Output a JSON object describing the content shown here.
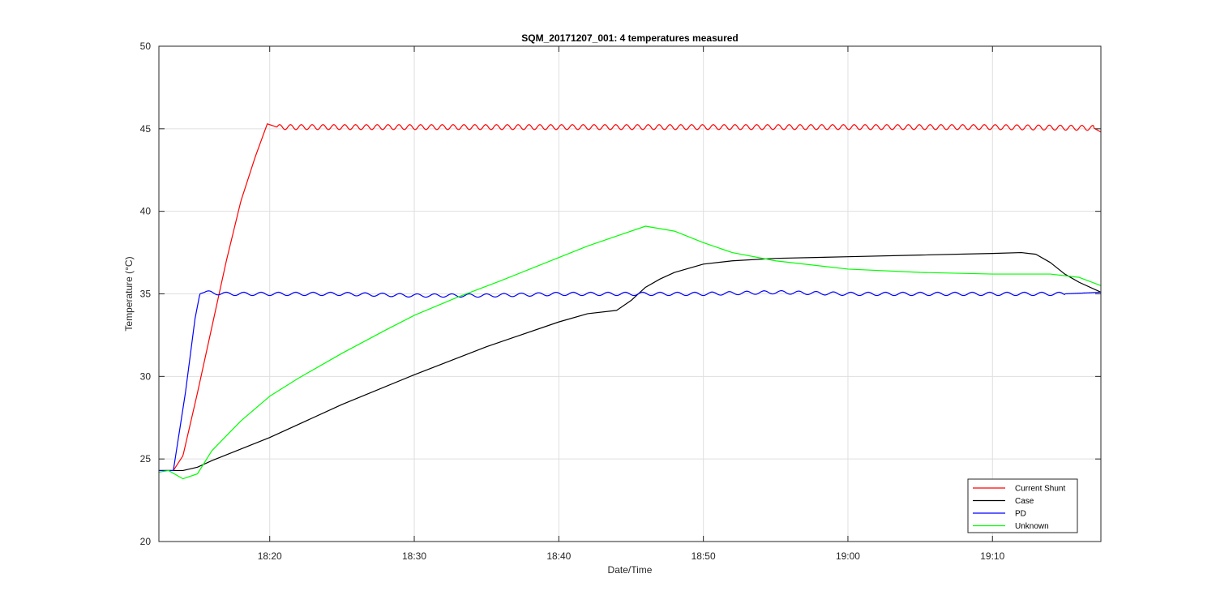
{
  "chart_data": {
    "type": "line",
    "title": "SQM_20171207_001: 4 temperatures measured",
    "xlabel": "Date/Time",
    "ylabel": "Temperature (°C)",
    "x_unit": "clock time (HH:MM)",
    "xlim": [
      "18:12:20",
      "19:17:30"
    ],
    "ylim": [
      20,
      50
    ],
    "xticks": [
      "18:20",
      "18:30",
      "18:40",
      "18:50",
      "19:00",
      "19:10"
    ],
    "yticks": [
      20,
      25,
      30,
      35,
      40,
      45,
      50
    ],
    "grid": true,
    "legend_position": "bottom-right",
    "series": [
      {
        "name": "Current Shunt",
        "color": "#ff0000",
        "oscillation": {
          "amplitude": 0.15,
          "period_min": 0.75,
          "from": "18:20:30"
        },
        "points": [
          [
            "18:12:20",
            24.3
          ],
          [
            "18:13:20",
            24.3
          ],
          [
            "18:14:00",
            25.2
          ],
          [
            "18:15:00",
            29.0
          ],
          [
            "18:16:00",
            33.0
          ],
          [
            "18:17:00",
            37.0
          ],
          [
            "18:18:00",
            40.6
          ],
          [
            "18:19:00",
            43.3
          ],
          [
            "18:19:50",
            45.3
          ],
          [
            "18:20:30",
            45.1
          ],
          [
            "18:30:00",
            45.1
          ],
          [
            "18:40:00",
            45.1
          ],
          [
            "18:50:00",
            45.1
          ],
          [
            "19:00:00",
            45.1
          ],
          [
            "19:10:00",
            45.1
          ],
          [
            "19:17:00",
            45.05
          ],
          [
            "19:17:30",
            44.8
          ]
        ]
      },
      {
        "name": "Case",
        "color": "#000000",
        "points": [
          [
            "18:12:20",
            24.3
          ],
          [
            "18:14:00",
            24.3
          ],
          [
            "18:15:00",
            24.5
          ],
          [
            "18:16:00",
            24.9
          ],
          [
            "18:18:00",
            25.6
          ],
          [
            "18:20:00",
            26.3
          ],
          [
            "18:25:00",
            28.3
          ],
          [
            "18:30:00",
            30.1
          ],
          [
            "18:35:00",
            31.8
          ],
          [
            "18:40:00",
            33.3
          ],
          [
            "18:42:00",
            33.8
          ],
          [
            "18:44:00",
            34.0
          ],
          [
            "18:45:00",
            34.6
          ],
          [
            "18:46:00",
            35.4
          ],
          [
            "18:47:00",
            35.9
          ],
          [
            "18:48:00",
            36.3
          ],
          [
            "18:50:00",
            36.8
          ],
          [
            "18:52:00",
            37.0
          ],
          [
            "18:55:00",
            37.15
          ],
          [
            "19:00:00",
            37.25
          ],
          [
            "19:05:00",
            37.35
          ],
          [
            "19:10:00",
            37.45
          ],
          [
            "19:12:00",
            37.5
          ],
          [
            "19:13:00",
            37.4
          ],
          [
            "19:14:00",
            36.9
          ],
          [
            "19:15:00",
            36.2
          ],
          [
            "19:16:00",
            35.7
          ],
          [
            "19:17:30",
            35.1
          ]
        ]
      },
      {
        "name": "PD",
        "color": "#0000ff",
        "oscillation": {
          "amplitude": 0.1,
          "period_min": 1.2,
          "from": "18:15:30"
        },
        "points": [
          [
            "18:12:20",
            24.3
          ],
          [
            "18:13:20",
            24.3
          ],
          [
            "18:14:10",
            29.0
          ],
          [
            "18:14:50",
            33.5
          ],
          [
            "18:15:10",
            35.0
          ],
          [
            "18:15:30",
            35.1
          ],
          [
            "18:17:00",
            35.0
          ],
          [
            "18:20:00",
            35.0
          ],
          [
            "18:25:00",
            35.0
          ],
          [
            "18:30:00",
            34.9
          ],
          [
            "18:35:00",
            34.9
          ],
          [
            "18:40:00",
            35.0
          ],
          [
            "18:45:00",
            35.0
          ],
          [
            "18:50:00",
            35.0
          ],
          [
            "18:55:00",
            35.1
          ],
          [
            "19:00:00",
            35.0
          ],
          [
            "19:05:00",
            35.0
          ],
          [
            "19:10:00",
            35.0
          ],
          [
            "19:15:00",
            35.0
          ],
          [
            "19:17:30",
            35.1
          ]
        ]
      },
      {
        "name": "Unknown",
        "color": "#00ff00",
        "points": [
          [
            "18:12:20",
            24.2
          ],
          [
            "18:13:00",
            24.3
          ],
          [
            "18:14:00",
            23.8
          ],
          [
            "18:15:00",
            24.1
          ],
          [
            "18:16:00",
            25.5
          ],
          [
            "18:18:00",
            27.3
          ],
          [
            "18:20:00",
            28.8
          ],
          [
            "18:22:00",
            29.9
          ],
          [
            "18:25:00",
            31.4
          ],
          [
            "18:28:00",
            32.8
          ],
          [
            "18:30:00",
            33.7
          ],
          [
            "18:33:00",
            34.8
          ],
          [
            "18:36:00",
            35.8
          ],
          [
            "18:40:00",
            37.2
          ],
          [
            "18:42:00",
            37.9
          ],
          [
            "18:44:00",
            38.5
          ],
          [
            "18:46:00",
            39.1
          ],
          [
            "18:48:00",
            38.8
          ],
          [
            "18:50:00",
            38.1
          ],
          [
            "18:52:00",
            37.5
          ],
          [
            "18:55:00",
            37.0
          ],
          [
            "19:00:00",
            36.5
          ],
          [
            "19:05:00",
            36.3
          ],
          [
            "19:10:00",
            36.2
          ],
          [
            "19:14:00",
            36.2
          ],
          [
            "19:16:00",
            36.0
          ],
          [
            "19:17:30",
            35.5
          ]
        ]
      }
    ]
  }
}
